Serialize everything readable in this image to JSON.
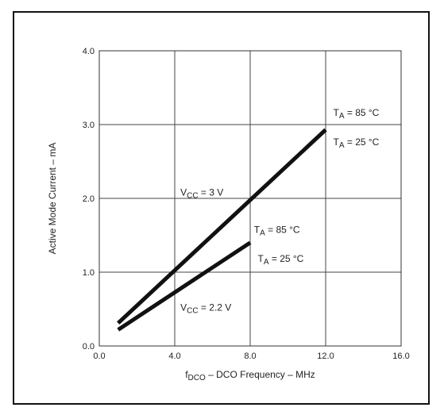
{
  "chart_data": {
    "type": "line",
    "title": "",
    "xlabel": "f DCO – DCO Frequency – MHz",
    "xlabel_parts": {
      "f": "f",
      "sub": "DCO",
      "rest": " – DCO Frequency – MHz"
    },
    "ylabel": "Active Mode Current – mA",
    "xlim": [
      0,
      16
    ],
    "ylim": [
      0,
      4
    ],
    "xticks": [
      0,
      4,
      8,
      12,
      16
    ],
    "xtick_labels": [
      "0.0",
      "4.0",
      "8.0",
      "12.0",
      "16.0"
    ],
    "yticks": [
      0,
      1,
      2,
      3,
      4
    ],
    "ytick_labels": [
      "0.0",
      "1.0",
      "2.0",
      "3.0",
      "4.0"
    ],
    "grid": true,
    "line_color": "#111111",
    "series": [
      {
        "name": "VCC = 3 V",
        "x": [
          1,
          12
        ],
        "y": [
          0.31,
          2.93
        ]
      },
      {
        "name": "VCC = 2.2 V",
        "x": [
          1,
          8
        ],
        "y": [
          0.22,
          1.4
        ]
      }
    ],
    "annotations": [
      {
        "id": "vcc3",
        "main": "V",
        "sub": "CC",
        "rest": " = 3 V",
        "at": [
          4.3,
          2.04
        ],
        "anchor": "start"
      },
      {
        "id": "vcc22",
        "main": "V",
        "sub": "CC",
        "rest": " = 2.2 V",
        "at": [
          4.3,
          0.48
        ],
        "anchor": "start"
      },
      {
        "id": "ta85-high",
        "main": "T",
        "sub": "A",
        "rest": " = 85 °C",
        "at": [
          12.4,
          3.12
        ],
        "anchor": "start"
      },
      {
        "id": "ta25-high",
        "main": "T",
        "sub": "A",
        "rest": " = 25 °C",
        "at": [
          12.4,
          2.72
        ],
        "anchor": "start"
      },
      {
        "id": "ta85-low",
        "main": "T",
        "sub": "A",
        "rest": " = 85 °C",
        "at": [
          8.2,
          1.53
        ],
        "anchor": "start"
      },
      {
        "id": "ta25-low",
        "main": "T",
        "sub": "A",
        "rest": " = 25 °C",
        "at": [
          8.4,
          1.14
        ],
        "anchor": "start"
      }
    ]
  }
}
